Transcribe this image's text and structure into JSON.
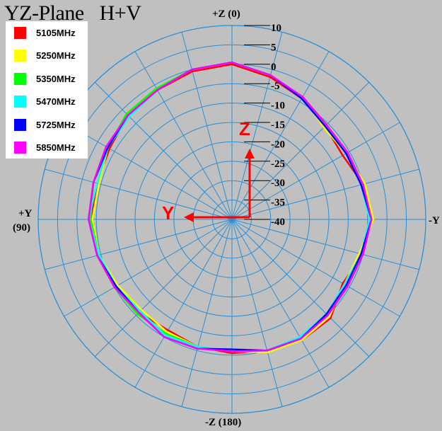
{
  "title": {
    "plane": "YZ-Plane",
    "polarization": "H+V"
  },
  "axis_labels": {
    "top": "+Z (0)",
    "bottom": "-Z (180)",
    "left_line1": "+Y",
    "left_line2": "(90)",
    "right": "-Y"
  },
  "overlay": {
    "z_label": "Z",
    "y_label": "Y",
    "color": "#ff0000"
  },
  "chart_data": {
    "type": "polar-line",
    "r_ticks": [
      10,
      5,
      0,
      -5,
      -10,
      -15,
      -20,
      -25,
      -30,
      -35,
      -40
    ],
    "r_range": [
      -40,
      10
    ],
    "r_unit_label": "",
    "angle_step_deg": 15,
    "radial_step_db": 5,
    "grid": true,
    "legend_position": "top-left",
    "angle_convention": "0 at top (+Z), 90 at left (+Y), 180 at bottom (-Z), 270 at right (-Y)",
    "angles": [
      0,
      15,
      30,
      45,
      60,
      75,
      90,
      105,
      120,
      135,
      150,
      165,
      180,
      195,
      210,
      225,
      240,
      255,
      270,
      285,
      300,
      315,
      330,
      345
    ],
    "series": [
      {
        "name": "5105MHz",
        "color": "#ff0000",
        "values": [
          0,
          -0.5,
          -1.5,
          -2,
          -3.5,
          -4,
          -3.5,
          -4,
          -5,
          -6,
          -7,
          -6,
          -5.5,
          -5,
          -4,
          -4,
          -7,
          -5,
          -4,
          -5,
          -7,
          -6,
          -4,
          -2
        ]
      },
      {
        "name": "5250MHz",
        "color": "#ffff00",
        "values": [
          0.5,
          0,
          -1,
          -1.5,
          -3,
          -4.5,
          -4,
          -4.5,
          -6,
          -7,
          -6.5,
          -6,
          -6,
          -4.5,
          -4,
          -4.5,
          -6.5,
          -6,
          -3.5,
          -4.5,
          -6,
          -6.5,
          -3.5,
          -1.5
        ]
      },
      {
        "name": "5350MHz",
        "color": "#00ff00",
        "values": [
          0.5,
          0,
          -1,
          -1.5,
          -3,
          -3,
          -3.5,
          -4.5,
          -5,
          -5.5,
          -6,
          -6,
          -6,
          -5,
          -4.5,
          -5,
          -5.5,
          -5.5,
          -4,
          -5,
          -6,
          -5.5,
          -3.5,
          -1.5
        ]
      },
      {
        "name": "5470MHz",
        "color": "#00ffff",
        "values": [
          0.5,
          0,
          -1.5,
          -2.5,
          -3,
          -4,
          -3,
          -4.5,
          -5.5,
          -6.5,
          -5.5,
          -6,
          -6,
          -5,
          -5,
          -5.5,
          -6.5,
          -5.5,
          -4.5,
          -5.5,
          -6,
          -6,
          -3.5,
          -1.5
        ]
      },
      {
        "name": "5725MHz",
        "color": "#0000ff",
        "values": [
          0.5,
          0,
          -1.5,
          -2,
          -3,
          -3,
          -3,
          -4,
          -5.5,
          -6,
          -5,
          -5.5,
          -6.5,
          -5,
          -4.5,
          -5.5,
          -6,
          -5.5,
          -4,
          -5.5,
          -6,
          -6,
          -4,
          -1.5
        ]
      },
      {
        "name": "5850MHz",
        "color": "#ff00ff",
        "values": [
          0.5,
          0,
          -1.5,
          -2,
          -2.5,
          -3,
          -3,
          -4,
          -5,
          -6,
          -5,
          -5.5,
          -6,
          -5,
          -4.5,
          -5,
          -5.5,
          -5,
          -4,
          -5,
          -5.5,
          -5.5,
          -3.5,
          -1.5
        ]
      }
    ]
  }
}
